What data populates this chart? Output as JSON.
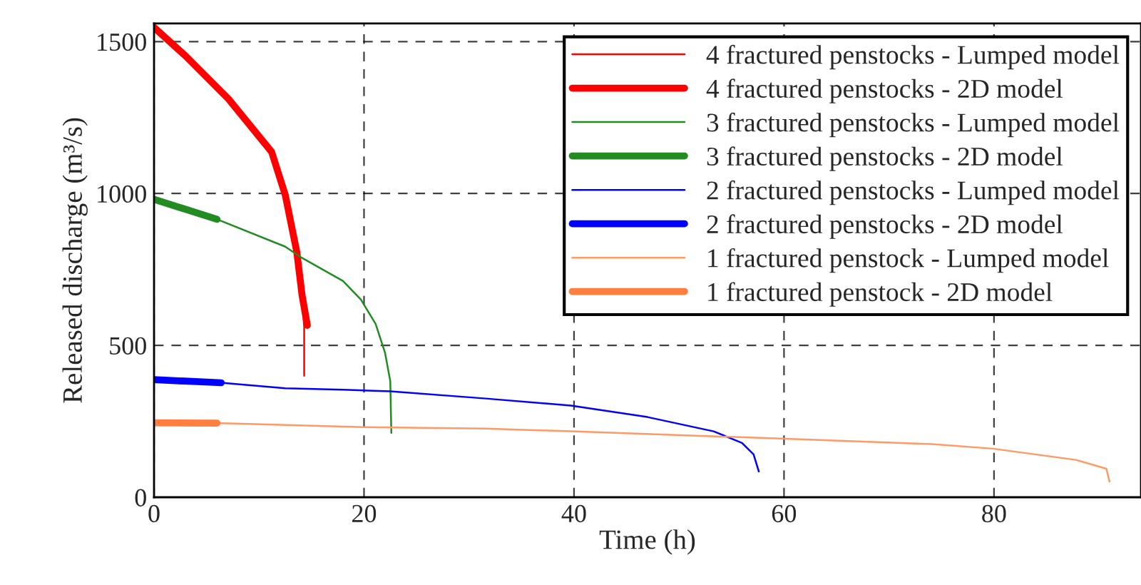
{
  "chart_data": {
    "type": "line",
    "xlabel": "Time (h)",
    "ylabel": "Released discharge (m³/s)",
    "xlim": [
      0,
      94
    ],
    "ylim": [
      0,
      1560
    ],
    "xticks": [
      0,
      20,
      40,
      60,
      80
    ],
    "yticks": [
      0,
      500,
      1000,
      1500
    ],
    "grid": true,
    "legend": "top right",
    "line_style": "solid",
    "marker": "none",
    "series": [
      {
        "name": "4 fractured penstocks - Lumped model",
        "color": "#ff0000",
        "x": [
          0,
          3,
          7.1,
          11.2,
          12.5,
          13.6,
          14.1,
          14.3,
          14.3
        ],
        "values": [
          1547,
          1453,
          1311,
          1137,
          995,
          807,
          665,
          560,
          400
        ]
      },
      {
        "name": "4 fractured penstocks - 2D model",
        "color": "#ff0000",
        "x": [
          0,
          3,
          7.1,
          11.2,
          12.5,
          13.6,
          14.1,
          14.6
        ],
        "values": [
          1547,
          1453,
          1311,
          1137,
          995,
          807,
          665,
          566
        ]
      },
      {
        "name": "3 fractured penstocks - Lumped model",
        "color": "#228b22",
        "x": [
          0,
          6,
          12.5,
          13.9,
          18,
          19.7,
          21.1,
          22,
          22.5,
          22.6
        ],
        "values": [
          981,
          915,
          825,
          792,
          712,
          651,
          571,
          476,
          382,
          212
        ]
      },
      {
        "name": "3 fractured penstocks - 2D model",
        "color": "#228b22",
        "x": [
          0,
          6
        ],
        "values": [
          981,
          915
        ]
      },
      {
        "name": "2 fractured penstocks - Lumped model",
        "color": "#0000ff",
        "x": [
          0,
          6.4,
          12.5,
          18,
          22.5,
          31.6,
          39.7,
          47,
          53.3,
          56,
          57.1,
          57.6
        ],
        "values": [
          387,
          377,
          359,
          354,
          349,
          325,
          302,
          264,
          217,
          179,
          141,
          85
        ]
      },
      {
        "name": "2 fractured penstocks - 2D model",
        "color": "#0000ff",
        "x": [
          0,
          6.4
        ],
        "values": [
          387,
          377
        ]
      },
      {
        "name": "1 fractured penstock - Lumped model",
        "color": "#ff9966",
        "x": [
          0,
          6,
          20,
          31.6,
          39.7,
          59.7,
          74.1,
          79.9,
          87.8,
          90.7,
          91
        ],
        "values": [
          245,
          244,
          231,
          226,
          217,
          193,
          175,
          160,
          123,
          94,
          52
        ]
      },
      {
        "name": "1 fractured penstock - 2D model",
        "color": "#ff7f40",
        "x": [
          0,
          6
        ],
        "values": [
          245,
          244
        ]
      }
    ]
  }
}
